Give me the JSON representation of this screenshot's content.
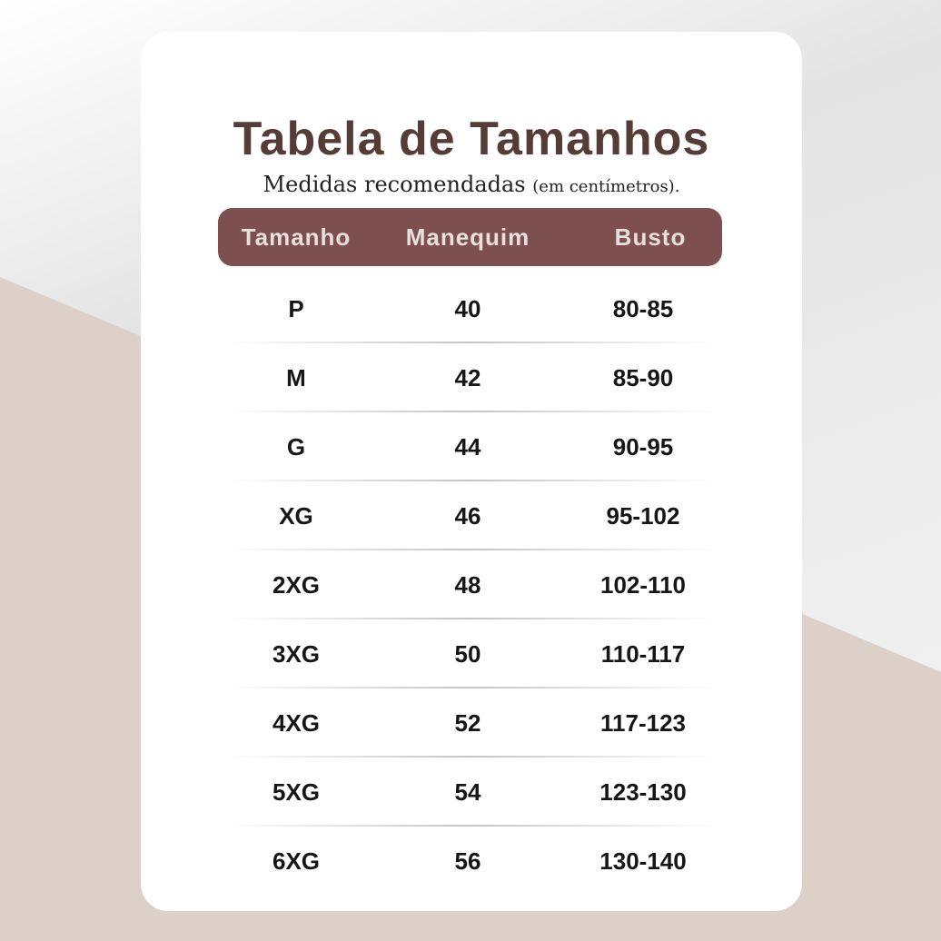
{
  "colors": {
    "title": "#553c36",
    "header_bg": "#7d4f4f",
    "accent_bg": "#dcd0c8"
  },
  "title": "Tabela de Tamanhos",
  "subtitle": {
    "main": "Medidas recomendadas",
    "note": "(em centímetros)."
  },
  "table": {
    "headers": [
      "Tamanho",
      "Manequim",
      "Busto"
    ],
    "rows": [
      [
        "P",
        "40",
        "80-85"
      ],
      [
        "M",
        "42",
        "85-90"
      ],
      [
        "G",
        "44",
        "90-95"
      ],
      [
        "XG",
        "46",
        "95-102"
      ],
      [
        "2XG",
        "48",
        "102-110"
      ],
      [
        "3XG",
        "50",
        "110-117"
      ],
      [
        "4XG",
        "52",
        "117-123"
      ],
      [
        "5XG",
        "54",
        "123-130"
      ],
      [
        "6XG",
        "56",
        "130-140"
      ]
    ]
  }
}
